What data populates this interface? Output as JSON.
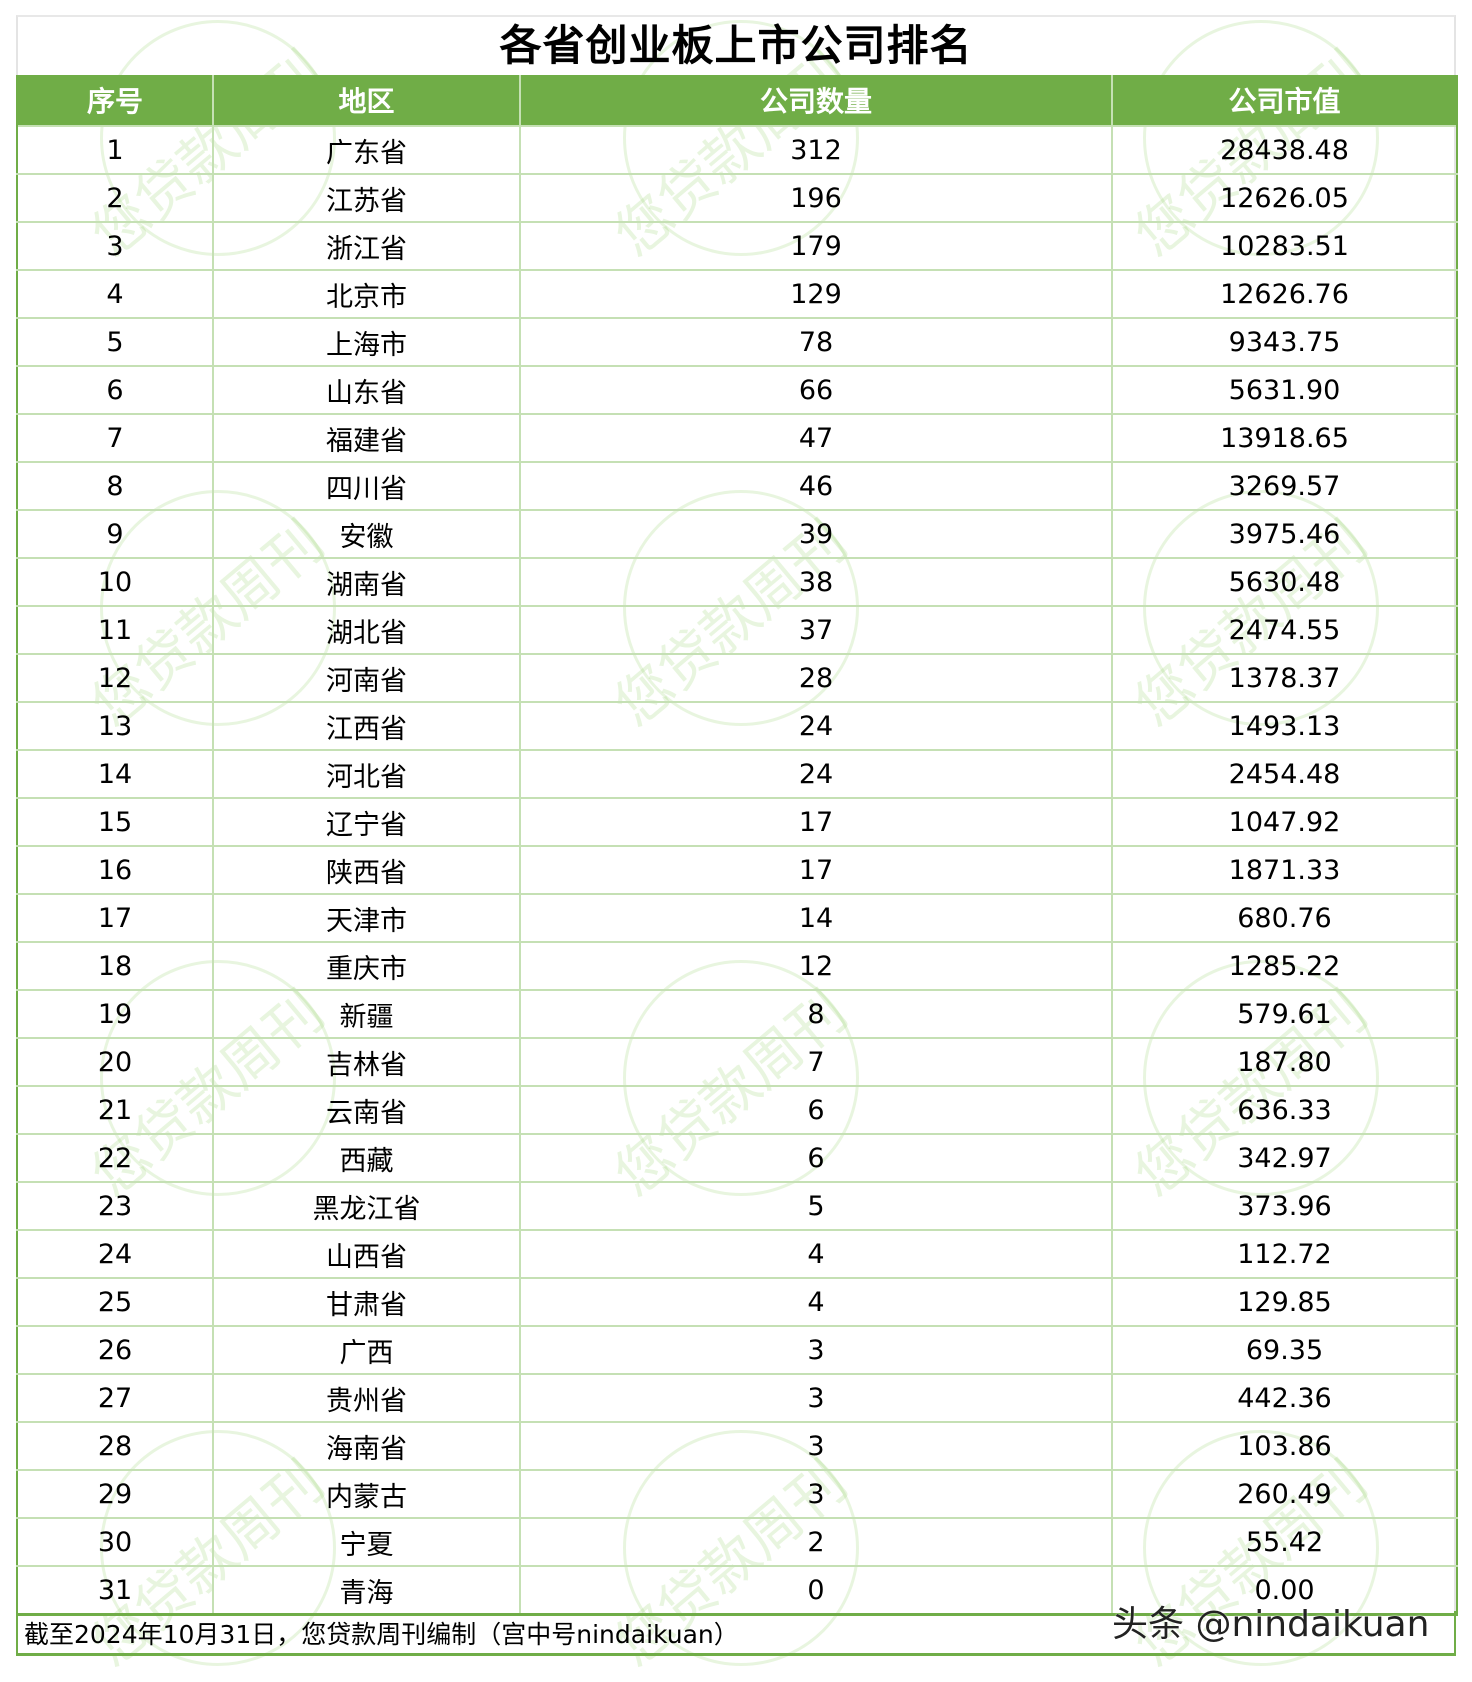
{
  "title": "各省创业板上市公司排名",
  "headers": [
    "序号",
    "地区",
    "公司数量",
    "公司市值"
  ],
  "rows": [
    [
      "1",
      "广东省",
      "312",
      "28438.48"
    ],
    [
      "2",
      "江苏省",
      "196",
      "12626.05"
    ],
    [
      "3",
      "浙江省",
      "179",
      "10283.51"
    ],
    [
      "4",
      "北京市",
      "129",
      "12626.76"
    ],
    [
      "5",
      "上海市",
      "78",
      "9343.75"
    ],
    [
      "6",
      "山东省",
      "66",
      "5631.90"
    ],
    [
      "7",
      "福建省",
      "47",
      "13918.65"
    ],
    [
      "8",
      "四川省",
      "46",
      "3269.57"
    ],
    [
      "9",
      "安徽",
      "39",
      "3975.46"
    ],
    [
      "10",
      "湖南省",
      "38",
      "5630.48"
    ],
    [
      "11",
      "湖北省",
      "37",
      "2474.55"
    ],
    [
      "12",
      "河南省",
      "28",
      "1378.37"
    ],
    [
      "13",
      "江西省",
      "24",
      "1493.13"
    ],
    [
      "14",
      "河北省",
      "24",
      "2454.48"
    ],
    [
      "15",
      "辽宁省",
      "17",
      "1047.92"
    ],
    [
      "16",
      "陕西省",
      "17",
      "1871.33"
    ],
    [
      "17",
      "天津市",
      "14",
      "680.76"
    ],
    [
      "18",
      "重庆市",
      "12",
      "1285.22"
    ],
    [
      "19",
      "新疆",
      "8",
      "579.61"
    ],
    [
      "20",
      "吉林省",
      "7",
      "187.80"
    ],
    [
      "21",
      "云南省",
      "6",
      "636.33"
    ],
    [
      "22",
      "西藏",
      "6",
      "342.97"
    ],
    [
      "23",
      "黑龙江省",
      "5",
      "373.96"
    ],
    [
      "24",
      "山西省",
      "4",
      "112.72"
    ],
    [
      "25",
      "甘肃省",
      "4",
      "129.85"
    ],
    [
      "26",
      "广西",
      "3",
      "69.35"
    ],
    [
      "27",
      "贵州省",
      "3",
      "442.36"
    ],
    [
      "28",
      "海南省",
      "3",
      "103.86"
    ],
    [
      "29",
      "内蒙古",
      "3",
      "260.49"
    ],
    [
      "30",
      "宁夏",
      "2",
      "55.42"
    ],
    [
      "31",
      "青海",
      "0",
      "0.00"
    ]
  ],
  "footnote": "截至2024年10月31日，您贷款周刊编制（宫中号nindaikuan）",
  "credit": "头条 @nindaikuan",
  "watermark": "您贷款周刊",
  "colors": {
    "header_bg": "#70ad47",
    "header_text": "#ffffff",
    "grid": "#c5e0b4"
  }
}
